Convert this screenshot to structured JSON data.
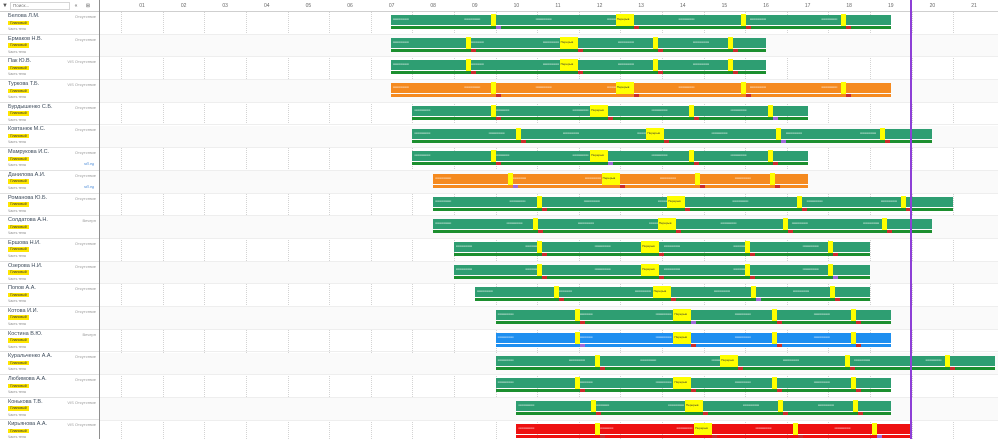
{
  "header": {
    "filter_icon": "filter-icon",
    "search_placeholder": "Поиск...",
    "collapse_label": "«",
    "settings_label": "⊞"
  },
  "hours": [
    "01",
    "02",
    "03",
    "04",
    "05",
    "06",
    "07",
    "08",
    "09",
    "10",
    "11",
    "12",
    "13",
    "14",
    "15",
    "16",
    "17",
    "18",
    "19",
    "20",
    "21"
  ],
  "colors": {
    "green": "#2e9e72",
    "orange": "#f58a1f",
    "blue": "#1e8ff0",
    "red": "#ee1111",
    "break": "#ffff00",
    "now": "#8d3fd6"
  },
  "people": [
    {
      "name": "Белова Л.М.",
      "status": "Отсутствие",
      "badge": "Плановый",
      "sub": "Часть тела",
      "color": "green",
      "start": 6.98,
      "end": 19.0
    },
    {
      "name": "Ермаков Н.В.",
      "status": "Отсутствие",
      "badge": "Плановый",
      "sub": "Часть тела",
      "color": "green",
      "start": 6.98,
      "end": 16.0
    },
    {
      "name": "Пак Ю.В.",
      "status": "VIS Отсутствие",
      "badge": "Плановый",
      "sub": "Часть тела",
      "color": "green",
      "start": 6.98,
      "end": 16.0
    },
    {
      "name": "Туркова Т.Б.",
      "status": "VIS Отсутствие",
      "badge": "Плановый",
      "sub": "Часть тела",
      "color": "orange",
      "start": 6.98,
      "end": 19.0
    },
    {
      "name": "Бурдышенко С.Б.",
      "status": "Отсутствие",
      "badge": "Плановый",
      "sub": "Часть тела",
      "color": "green",
      "start": 7.5,
      "end": 17.0
    },
    {
      "name": "Ковтанюк М.С.",
      "status": "Отсутствие",
      "badge": "Плановый",
      "sub": "Часть тела",
      "color": "green",
      "start": 7.5,
      "end": 20.0
    },
    {
      "name": "Мамрукова И.С.",
      "status": "Отсутствие",
      "badge": "Плановый",
      "sub": "Часть тела",
      "note": "мП.ед",
      "color": "green",
      "start": 7.5,
      "end": 17.0
    },
    {
      "name": "Данилова А.И.",
      "status": "Отсутствие",
      "badge": "Плановый",
      "sub": "Часть тела",
      "note": "мП.ед",
      "color": "orange",
      "start": 8.0,
      "end": 17.0
    },
    {
      "name": "Романова Ю.Б.",
      "status": "Отсутствие",
      "badge": "Плановый",
      "sub": "Часть тела",
      "color": "green",
      "start": 8.0,
      "end": 20.5
    },
    {
      "name": "Солдатова А.Н.",
      "status": "Вечерн",
      "badge": "Плановый",
      "sub": "Часть тела",
      "color": "green",
      "start": 8.0,
      "end": 20.0
    },
    {
      "name": "Ершова Н.И.",
      "status": "Отсутствие",
      "badge": "Плановый",
      "sub": "Часть тела",
      "color": "green",
      "start": 8.5,
      "end": 18.5
    },
    {
      "name": "Озерова Н.И.",
      "status": "Отсутствие",
      "badge": "Плановый",
      "sub": "Часть тела",
      "color": "green",
      "start": 8.5,
      "end": 18.5
    },
    {
      "name": "Попов А.А.",
      "status": "Отсутствие",
      "badge": "Плановый",
      "sub": "Часть тела",
      "color": "green",
      "start": 9.0,
      "end": 18.5
    },
    {
      "name": "Котова И.И.",
      "status": "Отсутствие",
      "badge": "Плановый",
      "sub": "Часть тела",
      "color": "green",
      "start": 9.5,
      "end": 19.0
    },
    {
      "name": "Костина В.Ю.",
      "status": "Вечерн",
      "badge": "Плановый",
      "sub": "Часть тела",
      "color": "blue",
      "start": 9.5,
      "end": 19.0
    },
    {
      "name": "Куральченко А.А.",
      "status": "Отсутствие",
      "badge": "Плановый",
      "sub": "Часть тела",
      "color": "green",
      "start": 9.5,
      "end": 21.5
    },
    {
      "name": "Любимова А.А.",
      "status": "Отсутствие",
      "badge": "Плановый",
      "sub": "Часть тела",
      "color": "green",
      "start": 9.5,
      "end": 19.0
    },
    {
      "name": "Конькова Т.В.",
      "status": "VIS Отсутствие",
      "badge": "Плановый",
      "sub": "Часть тела",
      "color": "green",
      "start": 10.0,
      "end": 19.0
    },
    {
      "name": "Кирьянова А.А.",
      "status": "VIS Отсутствие",
      "badge": "Плановый",
      "sub": "Часть тела",
      "color": "red",
      "start": 10.0,
      "end": 19.5
    }
  ],
  "break_label": "Перерыв",
  "now_hour": 19.45
}
